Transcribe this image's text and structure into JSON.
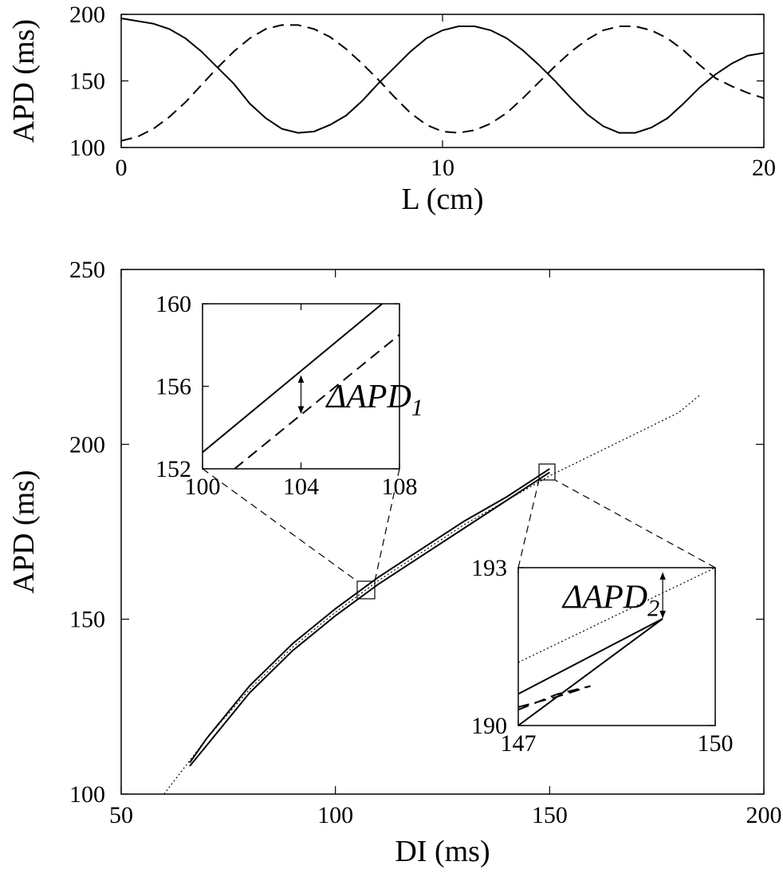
{
  "chart_data": [
    {
      "type": "line",
      "ylabel": "APD (ms)",
      "xlabel": "L (cm)",
      "xlim": [
        0,
        20
      ],
      "xticks": [
        0,
        10,
        20
      ],
      "ylim": [
        100,
        200
      ],
      "yticks": [
        100,
        150,
        200
      ],
      "x": [
        0,
        0.5,
        1,
        1.5,
        2,
        2.5,
        3,
        3.5,
        4,
        4.5,
        5,
        5.5,
        6,
        6.5,
        7,
        7.5,
        8,
        8.5,
        9,
        9.5,
        10,
        10.5,
        11,
        11.5,
        12,
        12.5,
        13,
        13.5,
        14,
        14.5,
        15,
        15.5,
        16,
        16.5,
        17,
        17.5,
        18,
        18.5,
        19,
        19.5,
        20
      ],
      "series": [
        {
          "style": "solid",
          "color": "#000000",
          "values": [
            197,
            195,
            193,
            189,
            182,
            172,
            160,
            148,
            133,
            122,
            114,
            111,
            112,
            117,
            124,
            135,
            148,
            160,
            172,
            182,
            188,
            191,
            191,
            188,
            182,
            173,
            162,
            150,
            137,
            125,
            116,
            111,
            111,
            115,
            122,
            133,
            145,
            155,
            163,
            169,
            171
          ]
        },
        {
          "style": "dashed",
          "color": "#000000",
          "values": [
            105,
            108,
            114,
            123,
            134,
            147,
            160,
            172,
            182,
            189,
            192,
            192,
            189,
            183,
            174,
            163,
            151,
            138,
            126,
            117,
            112,
            111,
            113,
            118,
            126,
            137,
            149,
            161,
            172,
            181,
            188,
            191,
            191,
            188,
            182,
            173,
            162,
            152,
            146,
            141,
            137
          ]
        }
      ]
    },
    {
      "type": "line",
      "ylabel": "APD (ms)",
      "xlabel": "DI (ms)",
      "xlim": [
        50,
        200
      ],
      "xticks": [
        50,
        100,
        150,
        200
      ],
      "ylim": [
        100,
        250
      ],
      "yticks": [
        100,
        150,
        200,
        250
      ],
      "series": [
        {
          "style": "dotted",
          "color": "#000000",
          "x": [
            60,
            70,
            80,
            90,
            100,
            110,
            120,
            130,
            140,
            150,
            160,
            170,
            180,
            185
          ],
          "values": [
            100,
            116,
            130,
            142,
            152,
            161,
            169,
            177,
            184,
            191,
            197,
            203,
            209,
            214
          ]
        },
        {
          "style": "solid",
          "color": "#000000",
          "x": [
            66,
            70,
            80,
            90,
            100,
            110,
            120,
            130,
            140,
            150
          ],
          "values": [
            109,
            116,
            131,
            143,
            153,
            162,
            170,
            178,
            185,
            193
          ]
        },
        {
          "style": "solid",
          "color": "#000000",
          "x": [
            66,
            70,
            80,
            90,
            100,
            110,
            120,
            130,
            140,
            150
          ],
          "values": [
            108,
            114,
            129,
            141,
            151,
            160,
            168,
            176,
            184,
            192
          ]
        }
      ]
    },
    {
      "type": "line",
      "xlim": [
        100,
        108
      ],
      "xticks": [
        100,
        104,
        108
      ],
      "ylim": [
        152,
        160
      ],
      "yticks": [
        152,
        156,
        160
      ],
      "series": [
        {
          "style": "solid",
          "color": "#000000",
          "x": [
            100,
            107.3
          ],
          "values": [
            152.8,
            160
          ]
        },
        {
          "style": "dashed",
          "color": "#000000",
          "x": [
            101.3,
            108
          ],
          "values": [
            152,
            158.5
          ]
        }
      ],
      "annotation": {
        "text": "ΔAPD",
        "sub": "1",
        "arrow_x": 104,
        "arrow_y": [
          156.5,
          154.7
        ]
      }
    },
    {
      "type": "line",
      "xlim": [
        147,
        150
      ],
      "xticks": [
        147,
        150
      ],
      "ylim": [
        190,
        193
      ],
      "yticks": [
        190,
        193
      ],
      "series": [
        {
          "style": "dotted",
          "color": "#000000",
          "x": [
            147,
            150
          ],
          "values": [
            191.2,
            193
          ]
        },
        {
          "style": "solid",
          "color": "#000000",
          "x": [
            147,
            149.2
          ],
          "values": [
            190.6,
            192.03
          ]
        },
        {
          "style": "solid",
          "color": "#000000",
          "x": [
            147,
            149.2
          ],
          "values": [
            190.0,
            192.03
          ]
        },
        {
          "style": "dashed",
          "color": "#000000",
          "x": [
            147,
            147.6,
            148.1,
            147.6,
            147
          ],
          "values": [
            190.35,
            190.55,
            190.75,
            190.6,
            190.3
          ]
        }
      ],
      "annotation": {
        "text": "ΔAPD",
        "sub": "2",
        "arrow_x": 149.2,
        "arrow_y": [
          192.9,
          192.05
        ]
      }
    }
  ]
}
